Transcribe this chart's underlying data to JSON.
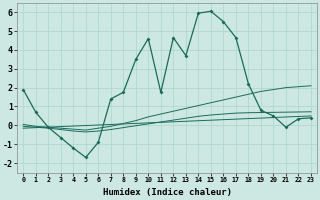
{
  "title": "",
  "xlabel": "Humidex (Indice chaleur)",
  "ylabel": "",
  "xlim": [
    -0.5,
    23.5
  ],
  "ylim": [
    -2.5,
    6.5
  ],
  "xticks": [
    0,
    1,
    2,
    3,
    4,
    5,
    6,
    7,
    8,
    9,
    10,
    11,
    12,
    13,
    14,
    15,
    16,
    17,
    18,
    19,
    20,
    21,
    22,
    23
  ],
  "yticks": [
    -2,
    -1,
    0,
    1,
    2,
    3,
    4,
    5,
    6
  ],
  "bg_color": "#cde8e2",
  "grid_color": "#b0d8d0",
  "line_color": "#1a6b5a",
  "line1_x": [
    0,
    1,
    2,
    3,
    4,
    5,
    6,
    7,
    8,
    9,
    10,
    11,
    12,
    13,
    14,
    15,
    16,
    17,
    18,
    19,
    20,
    21,
    22,
    23
  ],
  "line1_y": [
    1.9,
    0.7,
    -0.1,
    -0.65,
    -1.2,
    -1.7,
    -0.9,
    1.4,
    1.75,
    3.5,
    4.6,
    1.75,
    4.65,
    3.7,
    5.95,
    6.05,
    5.5,
    4.65,
    2.2,
    0.8,
    0.5,
    -0.1,
    0.35,
    0.4
  ],
  "line2_x": [
    0,
    1,
    2,
    3,
    4,
    5,
    6,
    7,
    8,
    9,
    10,
    11,
    12,
    13,
    14,
    15,
    16,
    17,
    18,
    19,
    20,
    21,
    22,
    23
  ],
  "line2_y": [
    0.05,
    -0.05,
    -0.1,
    -0.15,
    -0.2,
    -0.25,
    -0.15,
    -0.05,
    0.1,
    0.25,
    0.45,
    0.6,
    0.75,
    0.9,
    1.05,
    1.2,
    1.35,
    1.5,
    1.65,
    1.8,
    1.9,
    2.0,
    2.05,
    2.1
  ],
  "line3_x": [
    0,
    1,
    2,
    3,
    4,
    5,
    6,
    7,
    8,
    9,
    10,
    11,
    12,
    13,
    14,
    15,
    16,
    17,
    18,
    19,
    20,
    21,
    22,
    23
  ],
  "line3_y": [
    -0.05,
    -0.1,
    -0.15,
    -0.22,
    -0.3,
    -0.35,
    -0.3,
    -0.22,
    -0.12,
    -0.02,
    0.08,
    0.18,
    0.28,
    0.38,
    0.48,
    0.55,
    0.6,
    0.65,
    0.67,
    0.68,
    0.69,
    0.7,
    0.71,
    0.72
  ],
  "line4_x": [
    0,
    23
  ],
  "line4_y": [
    -0.15,
    0.5
  ]
}
